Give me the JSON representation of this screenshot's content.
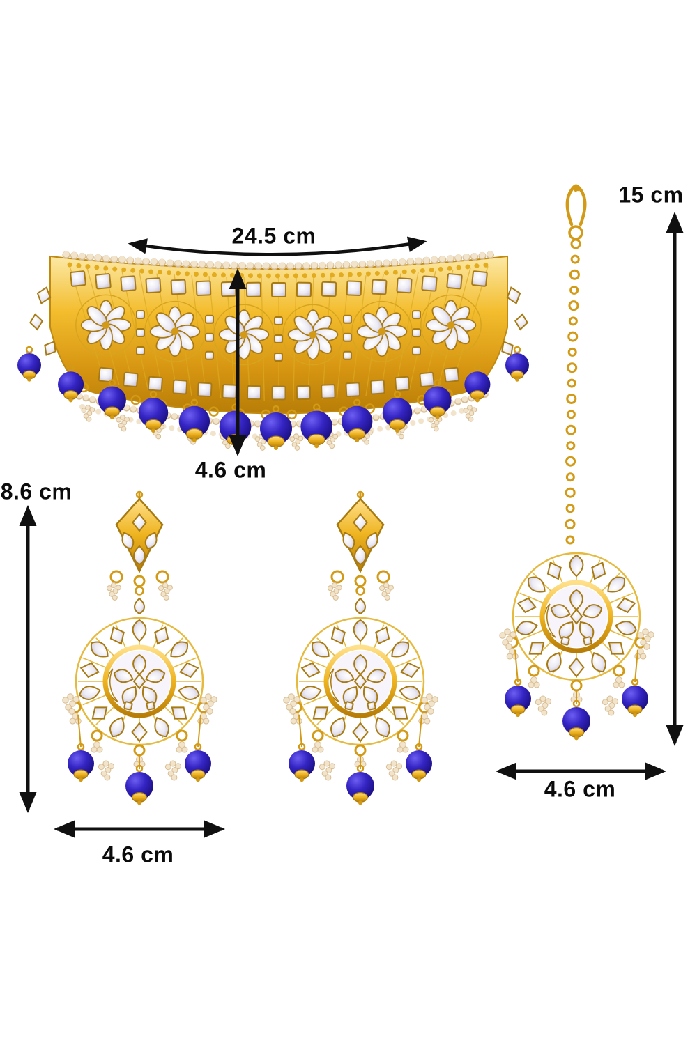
{
  "dimensions": {
    "choker_width": "24.5 cm",
    "choker_height": "4.6 cm",
    "tikka_length": "15 cm",
    "earring_height": "8.6 cm",
    "earring_width": "4.6 cm",
    "tikka_width": "4.6 cm"
  },
  "colors": {
    "gold": "#f0b429",
    "gold_dark": "#a87a12",
    "gold_ring": "#d29a16",
    "kundan_white": "#eceaf4",
    "pearl": "#f2e3cb",
    "pearl_shade": "#d8bd92",
    "bead_blue": "#2d1cb5",
    "arrow_black": "#101010",
    "background": "#ffffff"
  }
}
